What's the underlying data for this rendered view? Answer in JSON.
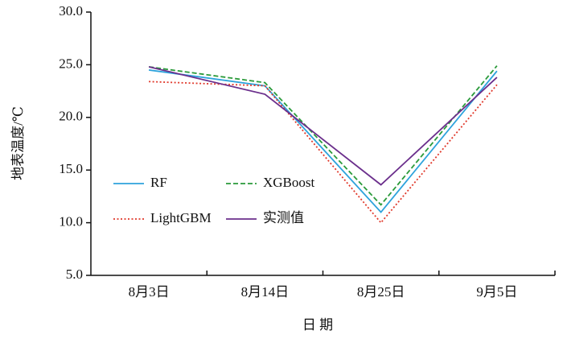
{
  "chart_data": {
    "type": "line",
    "x_label": "日 期",
    "y_label": "地表温度/℃",
    "categories": [
      "8月3日",
      "8月14日",
      "8月25日",
      "9月5日"
    ],
    "series": [
      {
        "name": "RF",
        "color": "#2ea3dc",
        "dash": "solid",
        "values": [
          24.5,
          23.0,
          11.0,
          24.4
        ]
      },
      {
        "name": "XGBoost",
        "color": "#2a9a3a",
        "dash": "dashed",
        "values": [
          24.8,
          23.3,
          11.7,
          24.9
        ]
      },
      {
        "name": "LightGBM",
        "color": "#e0392b",
        "dash": "dotted",
        "values": [
          23.4,
          23.0,
          10.0,
          23.1
        ]
      },
      {
        "name": "实测值",
        "color": "#6b2f8c",
        "dash": "solid",
        "values": [
          24.8,
          22.2,
          13.6,
          23.8
        ]
      }
    ],
    "ylim": [
      5,
      30
    ],
    "yticks": [
      {
        "value": 5,
        "label": "5.0"
      },
      {
        "value": 10,
        "label": "10.0"
      },
      {
        "value": 15,
        "label": "15.0"
      },
      {
        "value": 20,
        "label": "20.0"
      },
      {
        "value": 25,
        "label": "25.0"
      },
      {
        "value": 30,
        "label": "30.0"
      }
    ],
    "grid": false,
    "legend": "left"
  }
}
